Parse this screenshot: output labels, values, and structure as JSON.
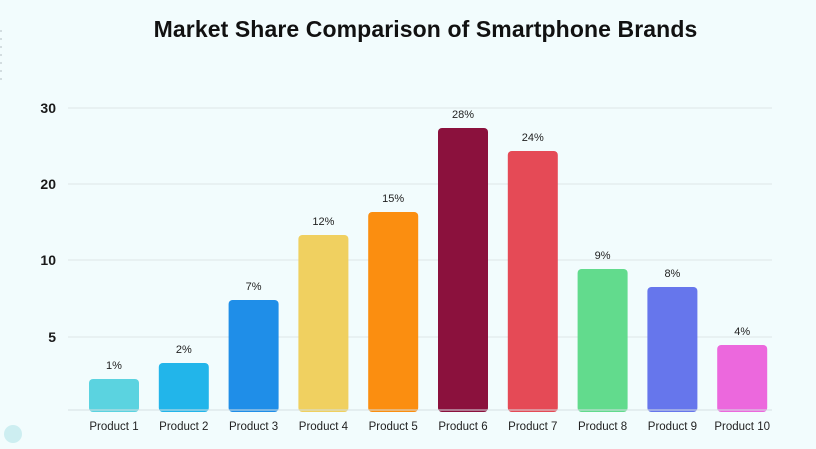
{
  "chart_data": {
    "type": "bar",
    "title": "Market Share Comparison of Smartphone Brands",
    "xlabel": "",
    "ylabel": "",
    "categories": [
      "Product 1",
      "Product 2",
      "Product 3",
      "Product 4",
      "Product 5",
      "Product 6",
      "Product 7",
      "Product 8",
      "Product 9",
      "Product 10"
    ],
    "values": [
      1,
      2,
      7,
      12,
      15,
      28,
      24,
      9,
      8,
      4
    ],
    "data_labels": [
      "1%",
      "2%",
      "7%",
      "12%",
      "15%",
      "28%",
      "24%",
      "9%",
      "8%",
      "4%"
    ],
    "colors": [
      "#5bd3e0",
      "#22b5ea",
      "#1f8ee8",
      "#f0d060",
      "#fb8e10",
      "#8b113d",
      "#e54a56",
      "#62db8d",
      "#6676ec",
      "#ec68dd"
    ],
    "y_ticks": [
      {
        "label": "30",
        "value": 30
      },
      {
        "label": "20",
        "value": 20
      },
      {
        "label": "10",
        "value": 10
      },
      {
        "label": "5",
        "value": 5
      }
    ],
    "ylim": [
      0,
      30
    ],
    "grid": true,
    "legend": "none"
  }
}
